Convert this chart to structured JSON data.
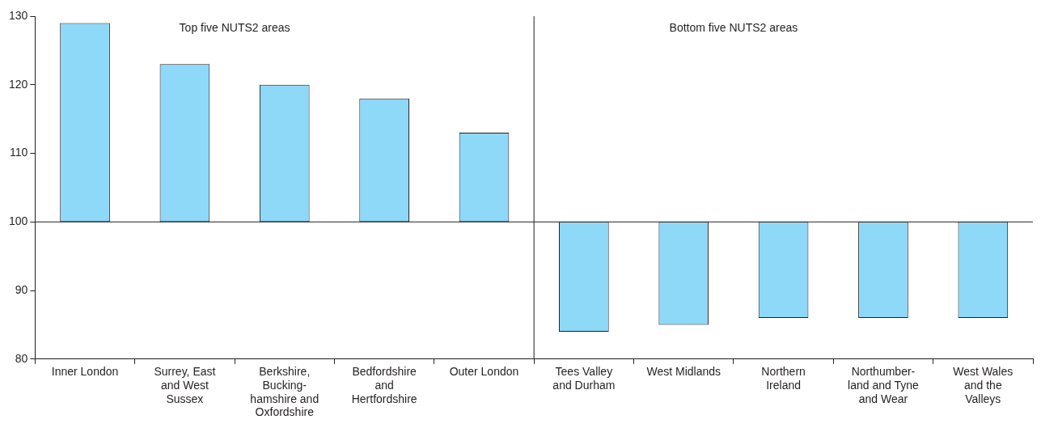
{
  "chart_data": {
    "type": "bar",
    "categories": [
      "Inner London",
      "Surrey, East\nand West\nSussex",
      "Berkshire,\nBucking-\nhamshire and\nOxfordshire",
      "Bedfordshire\nand\nHertfordshire",
      "Outer London",
      "Tees Valley\nand Durham",
      "West Midlands",
      "Northern\nIreland",
      "Northumber-\nland and Tyne\nand Wear",
      "West Wales\nand the\nValleys"
    ],
    "values": [
      29,
      23,
      20,
      18,
      13,
      -16,
      -15,
      -14,
      -14,
      -14
    ],
    "base": [
      100,
      100,
      100,
      100,
      100,
      100,
      100,
      100,
      100,
      100
    ],
    "color": "#8ed8f8",
    "ylim": [
      80,
      130
    ],
    "yticks": [
      80,
      90,
      100,
      110,
      120,
      130
    ],
    "grid": false,
    "legend": false,
    "ref_lines": [
      {
        "axis": "y",
        "value": 100,
        "color": "#231f20"
      }
    ],
    "annotations": [
      "Top five NUTS2 areas",
      "Bottom five NUTS2 areas"
    ]
  }
}
